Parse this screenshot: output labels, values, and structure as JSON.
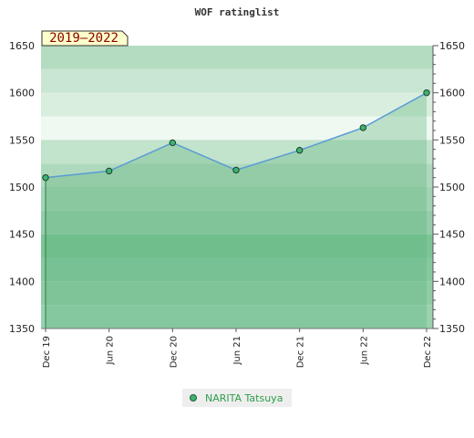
{
  "chart_data": {
    "type": "line",
    "title": "WOF ratinglist",
    "period_badge": "2019–2022",
    "x": [
      "Dec 19",
      "Jun 20",
      "Dec 20",
      "Jun 21",
      "Dec 21",
      "Jun 22",
      "Dec 22"
    ],
    "series": [
      {
        "name": "NARITA Tatsuya",
        "values": [
          1510,
          1517,
          1547,
          1518,
          1539,
          1563,
          1600
        ]
      }
    ],
    "ylim": [
      1350,
      1650
    ],
    "yticks": [
      1350,
      1400,
      1450,
      1500,
      1550,
      1600,
      1650
    ],
    "xlabel": "",
    "ylabel": "",
    "legend_position": "bottom-center",
    "grid": false,
    "colors": {
      "line": "#5b9bd5",
      "marker": "#3cb371",
      "band_light": "#dff0e4",
      "band_dark": "#7cc496",
      "fill": "#83c99c"
    }
  }
}
